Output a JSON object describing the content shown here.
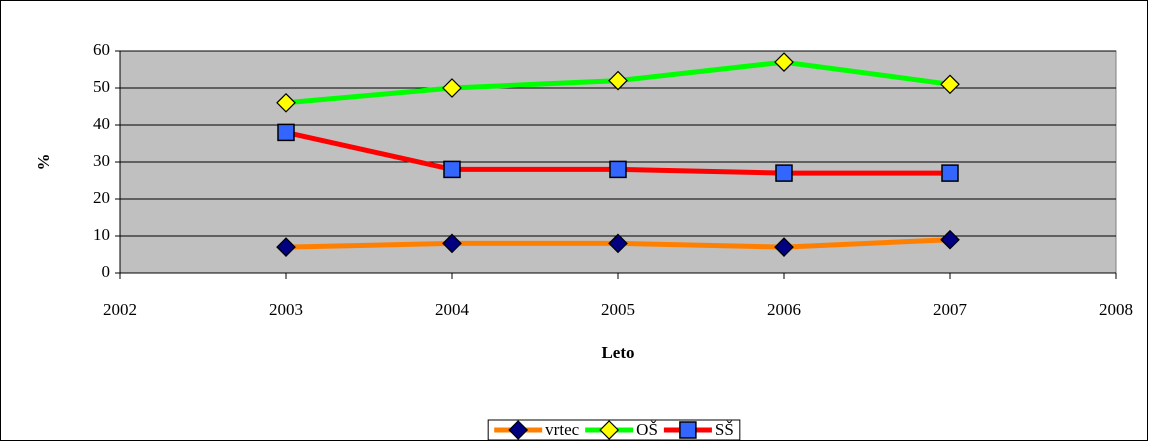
{
  "chart_data": {
    "type": "line",
    "x_label": "Leto",
    "y_label": "%",
    "x": [
      2003,
      2004,
      2005,
      2006,
      2007
    ],
    "xlim": [
      2002,
      2008
    ],
    "xticks": [
      2002,
      2003,
      2004,
      2005,
      2006,
      2007,
      2008
    ],
    "ylim": [
      0,
      60
    ],
    "yticks": [
      0,
      10,
      20,
      30,
      40,
      50,
      60
    ],
    "grid": true,
    "plot_background": "#c0c0c0",
    "legend": "bottom",
    "series": [
      {
        "name": "vrtec",
        "color": "#ff8000",
        "marker": "diamond",
        "marker_color": "#000080",
        "values": [
          7,
          8,
          8,
          7,
          9
        ]
      },
      {
        "name": "OŠ",
        "color": "#00ff00",
        "marker": "diamond",
        "marker_color": "#ffff00",
        "values": [
          46,
          50,
          52,
          57,
          51
        ]
      },
      {
        "name": "SŠ",
        "color": "#ff0000",
        "marker": "square",
        "marker_color": "#3366ff",
        "values": [
          38,
          28,
          28,
          27,
          27
        ]
      }
    ]
  }
}
